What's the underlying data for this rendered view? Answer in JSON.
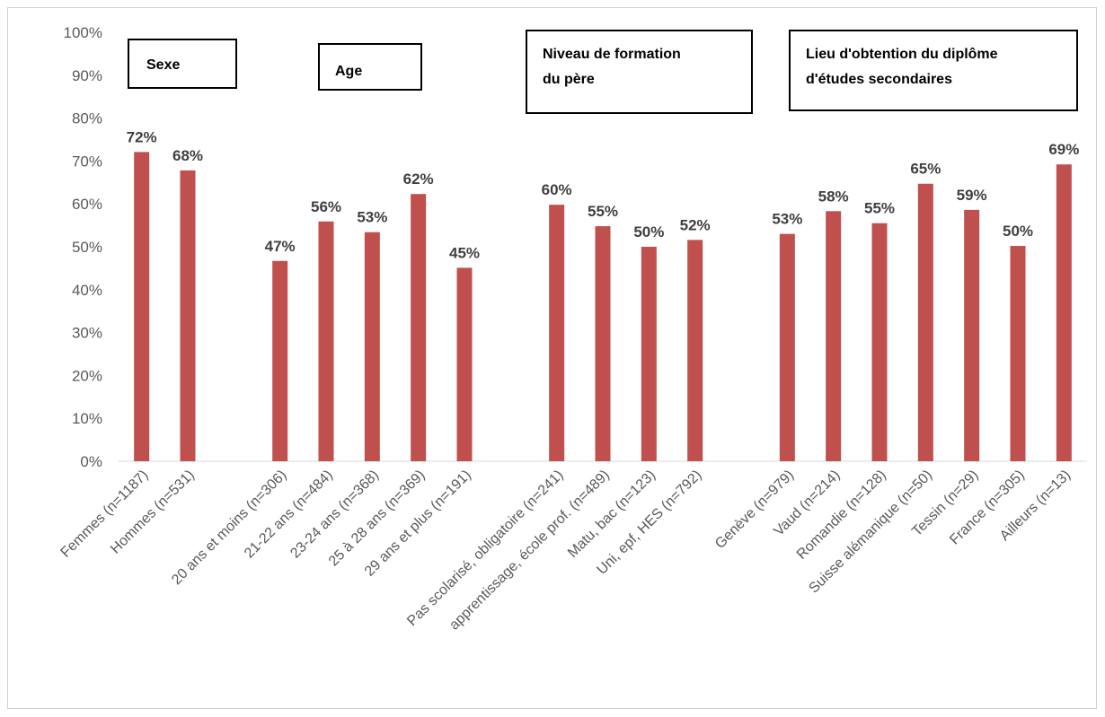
{
  "chart_data": {
    "type": "bar",
    "categories": [
      "Femmes (n=1187)",
      "Hommes (n=531)",
      "",
      "20 ans et moins (n=306)",
      "21-22 ans (n=484)",
      "23-24 ans (n=368)",
      "25 à 28 ans (n=369)",
      "29 ans et plus (n=191)",
      "",
      "Pas scolarisé, obligatoire (n=241)",
      "apprentissage, école prof. (n=489)",
      "Matu, bac (n=123)",
      "Uni, epf, HES (n=792)",
      "",
      "Genève (n=979)",
      "Vaud (n=214)",
      "Romandie (n=128)",
      "Suisse alémanique (n=50)",
      "Tessin (n=29)",
      "France (n=305)",
      "Ailleurs (n=13)"
    ],
    "values": [
      72,
      68,
      null,
      47,
      56,
      53,
      62,
      45,
      null,
      60,
      55,
      50,
      52,
      null,
      53,
      58,
      55,
      65,
      59,
      50,
      69
    ],
    "exact_values": [
      72.1,
      67.8,
      null,
      46.7,
      55.9,
      53.4,
      62.3,
      45.1,
      null,
      59.8,
      54.8,
      50.0,
      51.6,
      null,
      53.0,
      58.3,
      55.5,
      64.7,
      58.6,
      50.2,
      69.2
    ],
    "data_labels": [
      "72%",
      "68%",
      "",
      "47%",
      "56%",
      "53%",
      "62%",
      "45%",
      "",
      "60%",
      "55%",
      "50%",
      "52%",
      "",
      "53%",
      "58%",
      "55%",
      "65%",
      "59%",
      "50%",
      "69%"
    ],
    "ylim": [
      0,
      100
    ],
    "y_ticks": [
      0,
      10,
      20,
      30,
      40,
      50,
      60,
      70,
      80,
      90,
      100
    ],
    "y_tick_labels": [
      "0%",
      "10%",
      "20%",
      "30%",
      "40%",
      "50%",
      "60%",
      "70%",
      "80%",
      "90%",
      "100%"
    ],
    "grid": false,
    "bar_color": "#C0504D",
    "group_labels": [
      {
        "lines": [
          "Sexe"
        ]
      },
      {
        "lines": [
          "Age"
        ]
      },
      {
        "lines": [
          "Niveau de formation",
          "du père"
        ]
      },
      {
        "lines": [
          "Lieu d'obtention du diplôme",
          "d'études secondaires"
        ]
      }
    ]
  }
}
